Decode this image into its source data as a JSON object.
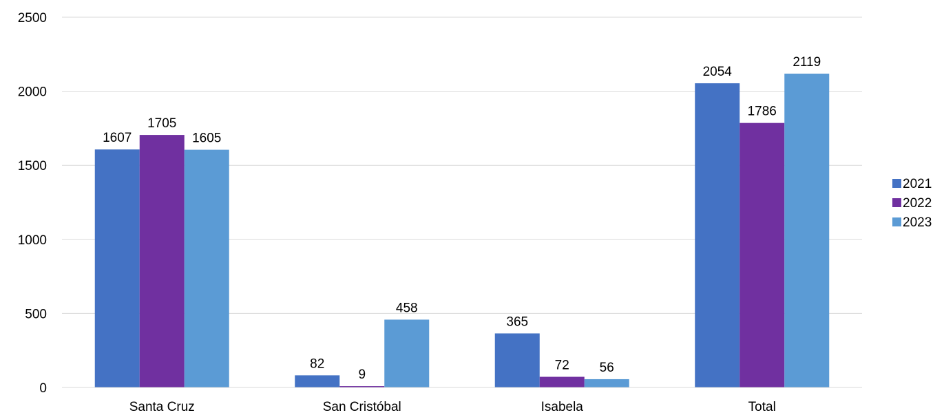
{
  "chart_data": {
    "type": "bar",
    "categories": [
      "Santa Cruz",
      "San Cristóbal",
      "Isabela",
      "Total"
    ],
    "series": [
      {
        "name": "2021",
        "color": "#4472C4",
        "values": [
          1607,
          82,
          365,
          2054
        ]
      },
      {
        "name": "2022",
        "color": "#7030A0",
        "values": [
          1705,
          9,
          72,
          1786
        ]
      },
      {
        "name": "2023",
        "color": "#5B9BD5",
        "values": [
          1605,
          458,
          56,
          2119
        ]
      }
    ],
    "ylim": [
      0,
      2500
    ],
    "yticks": [
      0,
      500,
      1000,
      1500,
      2000,
      2500
    ],
    "grid": true,
    "legend_position": "right",
    "title": "",
    "xlabel": "",
    "ylabel": ""
  }
}
